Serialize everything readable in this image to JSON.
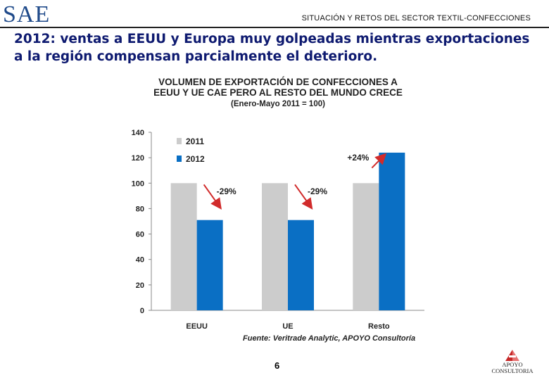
{
  "header": {
    "brand": "SAE",
    "section_title": "SITUACIÓN Y RETOS DEL SECTOR TEXTIL-CONFECCIONES"
  },
  "headline": "2012: ventas a EEUU y Europa muy golpeadas mientras exportaciones a la región compensan parcialmente el deterioro.",
  "chart_data": {
    "type": "bar",
    "title_lines": [
      "VOLUMEN DE EXPORTACIÓN DE CONFECCIONES A",
      "EEUU Y UE CAE PERO AL RESTO DEL MUNDO CRECE",
      "(Enero-Mayo 2011 = 100)"
    ],
    "categories": [
      "EEUU",
      "UE",
      "Resto"
    ],
    "series": [
      {
        "name": "2011",
        "values": [
          100,
          100,
          100
        ],
        "color": "#cccccc"
      },
      {
        "name": "2012",
        "values": [
          71,
          71,
          124
        ],
        "color": "#0a6fc4"
      }
    ],
    "ylim": [
      0,
      140
    ],
    "yticks": [
      0,
      20,
      40,
      60,
      80,
      100,
      120,
      140
    ],
    "legend_position": "top-left",
    "annotations": [
      {
        "category": "EEUU",
        "text": "-29%",
        "arrow": "down",
        "color": "#d12b2b"
      },
      {
        "category": "UE",
        "text": "-29%",
        "arrow": "down",
        "color": "#d12b2b"
      },
      {
        "category": "Resto",
        "text": "+24%",
        "arrow": "up",
        "color": "#d12b2b"
      }
    ],
    "source": "Fuente: Veritrade Analytic, APOYO Consultoría"
  },
  "footer": {
    "page_number": "6",
    "logo_text_line1": "APOYO",
    "logo_text_line2": "CONSULTORIA"
  }
}
